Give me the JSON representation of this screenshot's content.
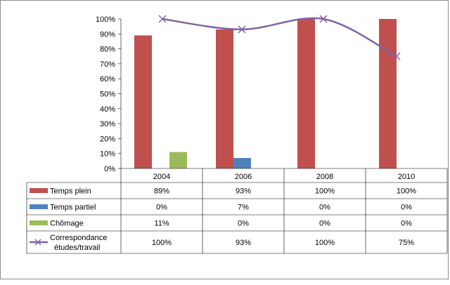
{
  "chart_data": {
    "type": "bar",
    "title": "",
    "xlabel": "",
    "ylabel": "",
    "ylim": [
      0,
      100
    ],
    "y_ticks": [
      "0%",
      "10%",
      "20%",
      "30%",
      "40%",
      "50%",
      "60%",
      "70%",
      "80%",
      "90%",
      "100%"
    ],
    "categories": [
      "2004",
      "2006",
      "2008",
      "2010"
    ],
    "series": [
      {
        "name": "Temps plein",
        "kind": "bar",
        "color": "#c0504d",
        "values": [
          89,
          93,
          100,
          100
        ],
        "labels": [
          "89%",
          "93%",
          "100%",
          "100%"
        ]
      },
      {
        "name": "Temps partiel",
        "kind": "bar",
        "color": "#4f81bd",
        "values": [
          0,
          7,
          0,
          0
        ],
        "labels": [
          "0%",
          "7%",
          "0%",
          "0%"
        ]
      },
      {
        "name": "Chômage",
        "kind": "bar",
        "color": "#9bbb59",
        "values": [
          11,
          0,
          0,
          0
        ],
        "labels": [
          "11%",
          "0%",
          "0%",
          "0%"
        ]
      },
      {
        "name": "Correspondance\nétudes/travail",
        "kind": "line",
        "color": "#8064a2",
        "values": [
          100,
          93,
          100,
          75
        ],
        "labels": [
          "100%",
          "93%",
          "100%",
          "75%"
        ]
      }
    ],
    "legend_position": "data-table-left",
    "grid": false
  }
}
